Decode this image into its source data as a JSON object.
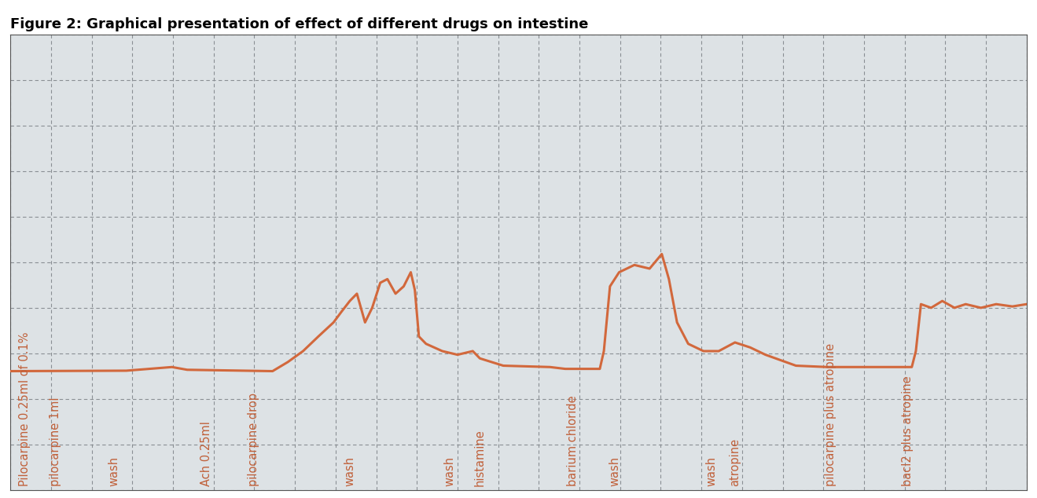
{
  "chart_data": {
    "type": "line",
    "title": "Figure 2: Graphical presentation of effect of different drugs on intestine",
    "color": "#d2683c",
    "grid": true,
    "tick_labels": false,
    "line_style": "solid",
    "x": [
      0,
      11.4,
      15.9,
      17.4,
      25.8,
      27.3,
      28.8,
      30.3,
      31.8,
      32.6,
      33.4,
      34.1,
      34.9,
      35.6,
      36.4,
      37.1,
      37.9,
      38.7,
      39.4,
      39.8,
      40.2,
      40.9,
      42.5,
      44.0,
      45.5,
      46.2,
      48.5,
      53.1,
      54.6,
      58.0,
      58.4,
      59.0,
      59.9,
      61.4,
      62.9,
      64.1,
      64.8,
      65.6,
      66.7,
      68.2,
      69.7,
      71.3,
      72.8,
      74.3,
      77.3,
      80.4,
      88.7,
      89.1,
      89.6,
      90.6,
      91.7,
      92.9,
      94.0,
      95.5,
      97.0,
      98.6,
      100
    ],
    "values": [
      2.62,
      2.63,
      2.71,
      2.65,
      2.62,
      2.82,
      3.06,
      3.38,
      3.69,
      3.93,
      4.16,
      4.32,
      3.69,
      4.01,
      4.56,
      4.64,
      4.32,
      4.48,
      4.79,
      4.4,
      3.38,
      3.22,
      3.06,
      2.98,
      3.06,
      2.9,
      2.74,
      2.71,
      2.67,
      2.67,
      3.06,
      4.48,
      4.79,
      4.95,
      4.87,
      5.19,
      4.64,
      3.69,
      3.22,
      3.06,
      3.06,
      3.25,
      3.14,
      2.98,
      2.74,
      2.71,
      2.71,
      3.06,
      4.09,
      4.01,
      4.16,
      4.01,
      4.09,
      4.01,
      4.09,
      4.04,
      4.09
    ],
    "xlim": [
      0,
      100
    ],
    "ylim": [
      0,
      10
    ],
    "xticks": [
      0,
      4,
      8,
      12,
      16,
      20,
      24,
      28,
      32,
      36,
      40,
      44,
      48,
      52,
      56,
      60,
      64,
      68,
      72,
      76,
      80,
      84,
      88,
      92,
      96,
      100
    ],
    "yticks": [
      0,
      1,
      2,
      3,
      4,
      5,
      6,
      7,
      8,
      9,
      10
    ],
    "annotations": [
      {
        "x": 1.4,
        "text": "Pilocarpine 0.25ml of 0.1%"
      },
      {
        "x": 4.4,
        "text": "pilocarpine 1ml"
      },
      {
        "x": 10.2,
        "text": "wash"
      },
      {
        "x": 19.3,
        "text": "Ach 0.25ml"
      },
      {
        "x": 23.9,
        "text": "pilocarpine drop"
      },
      {
        "x": 33.4,
        "text": "wash"
      },
      {
        "x": 43.2,
        "text": "wash"
      },
      {
        "x": 46.2,
        "text": "histamine"
      },
      {
        "x": 55.3,
        "text": "barium chloride"
      },
      {
        "x": 59.5,
        "text": "wash"
      },
      {
        "x": 69.0,
        "text": "wash"
      },
      {
        "x": 71.3,
        "text": "atropine"
      },
      {
        "x": 80.7,
        "text": "pilocarpine plus atropine"
      },
      {
        "x": 88.3,
        "text": "bacl2 plus atropine"
      }
    ]
  }
}
